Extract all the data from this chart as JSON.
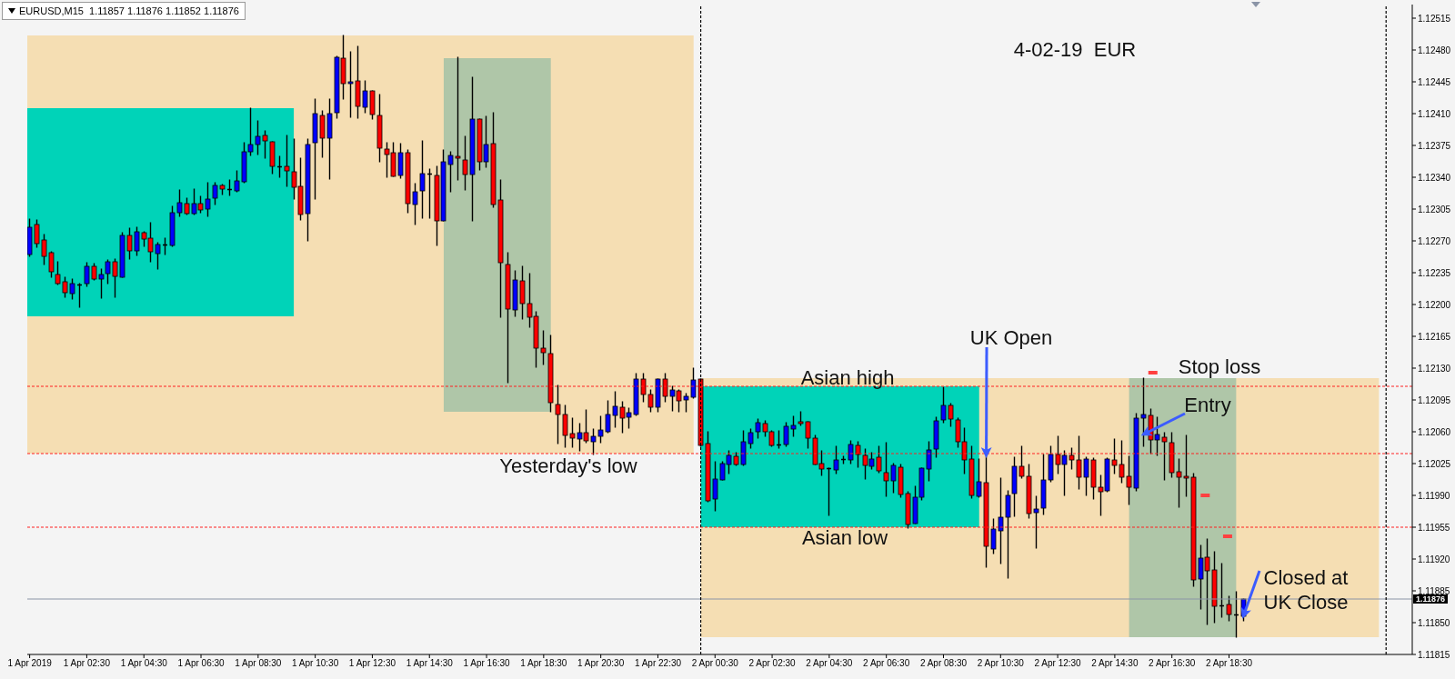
{
  "chart_data": {
    "type": "candlestick",
    "title": "EURUSD,M15  1.11857 1.11876 1.11852 1.11876",
    "subtitle": "4-02-19  EUR",
    "x": [
      "2019-04-01T00:30",
      "2019-04-01T00:45",
      "2019-04-01T01:00",
      "2019-04-01T01:15",
      "2019-04-01T01:30",
      "2019-04-01T01:45",
      "2019-04-01T02:00",
      "2019-04-01T02:15",
      "2019-04-01T02:30",
      "2019-04-01T02:45",
      "2019-04-01T03:00",
      "2019-04-01T03:15",
      "2019-04-01T03:30",
      "2019-04-01T03:45",
      "2019-04-01T04:00",
      "2019-04-01T04:15",
      "2019-04-01T04:30",
      "2019-04-01T04:45",
      "2019-04-01T05:00",
      "2019-04-01T05:15",
      "2019-04-01T05:30",
      "2019-04-01T05:45",
      "2019-04-01T06:00",
      "2019-04-01T06:15",
      "2019-04-01T06:30",
      "2019-04-01T06:45",
      "2019-04-01T07:00",
      "2019-04-01T07:15",
      "2019-04-01T07:30",
      "2019-04-01T07:45",
      "2019-04-01T08:00",
      "2019-04-01T08:15",
      "2019-04-01T08:30",
      "2019-04-01T08:45",
      "2019-04-01T09:00",
      "2019-04-01T09:15",
      "2019-04-01T09:30",
      "2019-04-01T09:45",
      "2019-04-01T10:00",
      "2019-04-01T10:15",
      "2019-04-01T10:30",
      "2019-04-01T10:45",
      "2019-04-01T11:00",
      "2019-04-01T11:15",
      "2019-04-01T11:30",
      "2019-04-01T11:45",
      "2019-04-01T12:00",
      "2019-04-01T12:15",
      "2019-04-01T12:30",
      "2019-04-01T12:45",
      "2019-04-01T13:00",
      "2019-04-01T13:15",
      "2019-04-01T13:30",
      "2019-04-01T13:45",
      "2019-04-01T14:00",
      "2019-04-01T14:15",
      "2019-04-01T14:30",
      "2019-04-01T14:45",
      "2019-04-01T15:00",
      "2019-04-01T15:15",
      "2019-04-01T15:30",
      "2019-04-01T15:45",
      "2019-04-01T16:00",
      "2019-04-01T16:15",
      "2019-04-01T16:30",
      "2019-04-01T16:45",
      "2019-04-01T17:00",
      "2019-04-01T17:15",
      "2019-04-01T17:30",
      "2019-04-01T17:45",
      "2019-04-01T18:00",
      "2019-04-01T18:15",
      "2019-04-01T18:30",
      "2019-04-01T18:45",
      "2019-04-01T19:00",
      "2019-04-01T19:15",
      "2019-04-01T19:30",
      "2019-04-01T19:45",
      "2019-04-01T20:00",
      "2019-04-01T20:15",
      "2019-04-01T20:30",
      "2019-04-01T20:45",
      "2019-04-01T21:00",
      "2019-04-01T21:15",
      "2019-04-01T21:30",
      "2019-04-01T21:45",
      "2019-04-01T22:00",
      "2019-04-01T22:15",
      "2019-04-01T22:30",
      "2019-04-01T22:45",
      "2019-04-01T23:00",
      "2019-04-01T23:15",
      "2019-04-01T23:30",
      "2019-04-01T23:45",
      "2019-04-02T00:00",
      "2019-04-02T00:15",
      "2019-04-02T00:30",
      "2019-04-02T00:45",
      "2019-04-02T01:00",
      "2019-04-02T01:15",
      "2019-04-02T01:30",
      "2019-04-02T01:45",
      "2019-04-02T02:00",
      "2019-04-02T02:15",
      "2019-04-02T02:30",
      "2019-04-02T02:45",
      "2019-04-02T03:00",
      "2019-04-02T03:15",
      "2019-04-02T03:30",
      "2019-04-02T03:45",
      "2019-04-02T04:00",
      "2019-04-02T04:15",
      "2019-04-02T04:30",
      "2019-04-02T04:45",
      "2019-04-02T05:00",
      "2019-04-02T05:15",
      "2019-04-02T05:30",
      "2019-04-02T05:45",
      "2019-04-02T06:00",
      "2019-04-02T06:15",
      "2019-04-02T06:30",
      "2019-04-02T06:45",
      "2019-04-02T07:00",
      "2019-04-02T07:15",
      "2019-04-02T07:30",
      "2019-04-02T07:45",
      "2019-04-02T08:00",
      "2019-04-02T08:15",
      "2019-04-02T08:30",
      "2019-04-02T08:45",
      "2019-04-02T09:00",
      "2019-04-02T09:15",
      "2019-04-02T09:30",
      "2019-04-02T09:45",
      "2019-04-02T10:00",
      "2019-04-02T10:15",
      "2019-04-02T10:30",
      "2019-04-02T10:45",
      "2019-04-02T11:00",
      "2019-04-02T11:15",
      "2019-04-02T11:30",
      "2019-04-02T11:45",
      "2019-04-02T12:00",
      "2019-04-02T12:15",
      "2019-04-02T12:30",
      "2019-04-02T12:45",
      "2019-04-02T13:00",
      "2019-04-02T13:15",
      "2019-04-02T13:30",
      "2019-04-02T13:45",
      "2019-04-02T14:00",
      "2019-04-02T14:15",
      "2019-04-02T14:30",
      "2019-04-02T14:45",
      "2019-04-02T15:00",
      "2019-04-02T15:15",
      "2019-04-02T15:30",
      "2019-04-02T15:45",
      "2019-04-02T16:00",
      "2019-04-02T16:15",
      "2019-04-02T16:30",
      "2019-04-02T16:45",
      "2019-04-02T17:00",
      "2019-04-02T17:15",
      "2019-04-02T17:30",
      "2019-04-02T17:45",
      "2019-04-02T18:00",
      "2019-04-02T18:15",
      "2019-04-02T18:30",
      "2019-04-02T18:45",
      "2019-04-02T19:00"
    ],
    "ohlc": [
      [
        1.12255,
        1.12294,
        1.12253,
        1.12285
      ],
      [
        1.12288,
        1.12293,
        1.12263,
        1.12267
      ],
      [
        1.12271,
        1.12277,
        1.12244,
        1.12253
      ],
      [
        1.12257,
        1.12258,
        1.1223,
        1.12236
      ],
      [
        1.12233,
        1.12247,
        1.12222,
        1.12223
      ],
      [
        1.12225,
        1.1223,
        1.12208,
        1.12213
      ],
      [
        1.12212,
        1.12228,
        1.12206,
        1.12223
      ],
      [
        1.12222,
        1.12223,
        1.12197,
        1.12221
      ],
      [
        1.12223,
        1.12246,
        1.1222,
        1.12242
      ],
      [
        1.12242,
        1.12245,
        1.12227,
        1.12228
      ],
      [
        1.12228,
        1.12239,
        1.12207,
        1.12233
      ],
      [
        1.12234,
        1.12249,
        1.12223,
        1.12247
      ],
      [
        1.12247,
        1.1225,
        1.12208,
        1.12231
      ],
      [
        1.1223,
        1.12279,
        1.1223,
        1.12276
      ],
      [
        1.12276,
        1.12284,
        1.1225,
        1.12259
      ],
      [
        1.12259,
        1.12285,
        1.12254,
        1.1228
      ],
      [
        1.12279,
        1.1228,
        1.12264,
        1.12272
      ],
      [
        1.12273,
        1.1229,
        1.12247,
        1.12258
      ],
      [
        1.12256,
        1.12268,
        1.12239,
        1.12266
      ],
      [
        1.12265,
        1.12273,
        1.12255,
        1.12266
      ],
      [
        1.12265,
        1.12308,
        1.12264,
        1.12301
      ],
      [
        1.12301,
        1.12326,
        1.12297,
        1.12312
      ],
      [
        1.12311,
        1.12317,
        1.12299,
        1.123
      ],
      [
        1.123,
        1.12327,
        1.12299,
        1.12311
      ],
      [
        1.12311,
        1.12319,
        1.12301,
        1.12304
      ],
      [
        1.12305,
        1.12334,
        1.12297,
        1.12316
      ],
      [
        1.12317,
        1.12334,
        1.1231,
        1.12331
      ],
      [
        1.12331,
        1.12332,
        1.12321,
        1.12327
      ],
      [
        1.12327,
        1.12337,
        1.1232,
        1.12326
      ],
      [
        1.12325,
        1.12347,
        1.12324,
        1.12336
      ],
      [
        1.12335,
        1.12378,
        1.12334,
        1.12368
      ],
      [
        1.12368,
        1.12416,
        1.12364,
        1.12376
      ],
      [
        1.12376,
        1.12402,
        1.12365,
        1.12385
      ],
      [
        1.12386,
        1.12391,
        1.12361,
        1.1238
      ],
      [
        1.12379,
        1.12379,
        1.12344,
        1.12352
      ],
      [
        1.12352,
        1.12363,
        1.1234,
        1.12351
      ],
      [
        1.12352,
        1.12386,
        1.1233,
        1.12347
      ],
      [
        1.12346,
        1.12382,
        1.12316,
        1.12329
      ],
      [
        1.1233,
        1.12361,
        1.12293,
        1.12299
      ],
      [
        1.123,
        1.12382,
        1.1227,
        1.12376
      ],
      [
        1.12378,
        1.12426,
        1.12316,
        1.1241
      ],
      [
        1.12408,
        1.12413,
        1.12362,
        1.12383
      ],
      [
        1.12383,
        1.12426,
        1.12338,
        1.1241
      ],
      [
        1.12411,
        1.12473,
        1.12405,
        1.12472
      ],
      [
        1.12471,
        1.12496,
        1.12426,
        1.12443
      ],
      [
        1.12443,
        1.12478,
        1.12406,
        1.12445
      ],
      [
        1.12446,
        1.12484,
        1.12405,
        1.12418
      ],
      [
        1.12417,
        1.12446,
        1.12411,
        1.12435
      ],
      [
        1.12435,
        1.12435,
        1.12404,
        1.12409
      ],
      [
        1.12408,
        1.12431,
        1.12357,
        1.12372
      ],
      [
        1.12371,
        1.12378,
        1.1234,
        1.12365
      ],
      [
        1.12367,
        1.12378,
        1.12341,
        1.12341
      ],
      [
        1.12342,
        1.12377,
        1.12339,
        1.12367
      ],
      [
        1.12367,
        1.1237,
        1.12301,
        1.12311
      ],
      [
        1.1231,
        1.12333,
        1.12288,
        1.12324
      ],
      [
        1.12325,
        1.1238,
        1.12295,
        1.12344
      ],
      [
        1.12344,
        1.12349,
        1.12295,
        1.12343
      ],
      [
        1.12342,
        1.12352,
        1.12265,
        1.12292
      ],
      [
        1.12292,
        1.1237,
        1.12292,
        1.12357
      ],
      [
        1.12354,
        1.12368,
        1.12324,
        1.12364
      ],
      [
        1.12363,
        1.12472,
        1.12337,
        1.12361
      ],
      [
        1.12359,
        1.12385,
        1.12326,
        1.12343
      ],
      [
        1.12343,
        1.1245,
        1.12292,
        1.12404
      ],
      [
        1.12404,
        1.12404,
        1.12348,
        1.12357
      ],
      [
        1.12357,
        1.12407,
        1.12351,
        1.12376
      ],
      [
        1.12377,
        1.12411,
        1.12307,
        1.1231
      ],
      [
        1.12315,
        1.12337,
        1.12186,
        1.12246
      ],
      [
        1.12244,
        1.12257,
        1.12114,
        1.12195
      ],
      [
        1.12194,
        1.12237,
        1.12187,
        1.12227
      ],
      [
        1.12226,
        1.12242,
        1.12184,
        1.12201
      ],
      [
        1.12201,
        1.12234,
        1.12175,
        1.12186
      ],
      [
        1.12187,
        1.12192,
        1.12131,
        1.12152
      ],
      [
        1.12152,
        1.12171,
        1.12134,
        1.12147
      ],
      [
        1.12146,
        1.12166,
        1.12082,
        1.12092
      ],
      [
        1.1209,
        1.12111,
        1.12047,
        1.12079
      ],
      [
        1.12079,
        1.12089,
        1.12043,
        1.12056
      ],
      [
        1.12058,
        1.12075,
        1.12043,
        1.12053
      ],
      [
        1.12052,
        1.12069,
        1.12039,
        1.12059
      ],
      [
        1.12059,
        1.12084,
        1.12048,
        1.1205
      ],
      [
        1.12049,
        1.12063,
        1.12035,
        1.12055
      ],
      [
        1.12055,
        1.12077,
        1.12048,
        1.12062
      ],
      [
        1.1206,
        1.12094,
        1.12059,
        1.12079
      ],
      [
        1.12078,
        1.12104,
        1.12065,
        1.12088
      ],
      [
        1.12087,
        1.12093,
        1.12059,
        1.12075
      ],
      [
        1.12076,
        1.12086,
        1.12064,
        1.12081
      ],
      [
        1.12079,
        1.12124,
        1.12078,
        1.12118
      ],
      [
        1.12118,
        1.12124,
        1.12093,
        1.12101
      ],
      [
        1.12101,
        1.12106,
        1.12082,
        1.12087
      ],
      [
        1.12087,
        1.12118,
        1.12082,
        1.12118
      ],
      [
        1.12118,
        1.12124,
        1.12093,
        1.12099
      ],
      [
        1.12099,
        1.1211,
        1.12083,
        1.12106
      ],
      [
        1.12105,
        1.12106,
        1.12082,
        1.12094
      ],
      [
        1.12095,
        1.12102,
        1.12082,
        1.12099
      ],
      [
        1.12098,
        1.1213,
        1.12097,
        1.12117
      ],
      [
        1.12118,
        1.12118,
        1.12044,
        1.12045
      ],
      [
        1.12047,
        1.1206,
        1.11983,
        1.11984
      ],
      [
        1.11986,
        1.12027,
        1.11973,
        1.12008
      ],
      [
        1.12007,
        1.12027,
        1.12007,
        1.12025
      ],
      [
        1.12024,
        1.12039,
        1.12014,
        1.12034
      ],
      [
        1.12033,
        1.12037,
        1.12023,
        1.12024
      ],
      [
        1.12024,
        1.12061,
        1.12023,
        1.12049
      ],
      [
        1.12047,
        1.12063,
        1.12042,
        1.12059
      ],
      [
        1.1206,
        1.12074,
        1.12053,
        1.1207
      ],
      [
        1.12069,
        1.12072,
        1.12055,
        1.1206
      ],
      [
        1.1206,
        1.12061,
        1.12044,
        1.12045
      ],
      [
        1.12046,
        1.12061,
        1.12042,
        1.12045
      ],
      [
        1.12046,
        1.1207,
        1.12044,
        1.12066
      ],
      [
        1.12063,
        1.12077,
        1.12055,
        1.12067
      ],
      [
        1.12071,
        1.12082,
        1.12067,
        1.12069
      ],
      [
        1.12071,
        1.12071,
        1.12042,
        1.12053
      ],
      [
        1.12053,
        1.12056,
        1.12024,
        1.12024
      ],
      [
        1.12025,
        1.12039,
        1.12012,
        1.12019
      ],
      [
        1.1202,
        1.1202,
        1.11968,
        1.12019
      ],
      [
        1.12018,
        1.12044,
        1.12014,
        1.12029
      ],
      [
        1.12029,
        1.12033,
        1.12025,
        1.1203
      ],
      [
        1.12029,
        1.1205,
        1.12025,
        1.12046
      ],
      [
        1.12045,
        1.12049,
        1.12021,
        1.12035
      ],
      [
        1.12034,
        1.12041,
        1.12008,
        1.12023
      ],
      [
        1.12022,
        1.12037,
        1.12019,
        1.1203
      ],
      [
        1.12032,
        1.12044,
        1.12015,
        1.12017
      ],
      [
        1.12015,
        1.12048,
        1.11989,
        1.12006
      ],
      [
        1.12006,
        1.12025,
        1.11993,
        1.12023
      ],
      [
        1.12021,
        1.12024,
        1.11988,
        1.11991
      ],
      [
        1.11992,
        1.11994,
        1.11954,
        1.11958
      ],
      [
        1.11959,
        1.12,
        1.11959,
        1.11988
      ],
      [
        1.11988,
        1.1202,
        1.11985,
        1.1202
      ],
      [
        1.12019,
        1.12049,
        1.12006,
        1.1204
      ],
      [
        1.12041,
        1.12076,
        1.12032,
        1.12072
      ],
      [
        1.12073,
        1.12109,
        1.1207,
        1.12089
      ],
      [
        1.12089,
        1.12091,
        1.12066,
        1.12074
      ],
      [
        1.12073,
        1.12075,
        1.12043,
        1.12049
      ],
      [
        1.12049,
        1.12064,
        1.12014,
        1.12029
      ],
      [
        1.1203,
        1.12044,
        1.11987,
        1.1199
      ],
      [
        1.11989,
        1.1203,
        1.11988,
        1.12005
      ],
      [
        1.12004,
        1.12034,
        1.11911,
        1.11934
      ],
      [
        1.11931,
        1.11964,
        1.11926,
        1.11953
      ],
      [
        1.11951,
        1.12009,
        1.11915,
        1.11966
      ],
      [
        1.11966,
        1.11995,
        1.11899,
        1.1199
      ],
      [
        1.11992,
        1.12032,
        1.11967,
        1.12022
      ],
      [
        1.12022,
        1.12044,
        1.12009,
        1.12011
      ],
      [
        1.12011,
        1.12024,
        1.11965,
        1.1197
      ],
      [
        1.11971,
        1.11989,
        1.11932,
        1.11975
      ],
      [
        1.11976,
        1.12035,
        1.11969,
        1.12007
      ],
      [
        1.12007,
        1.12044,
        1.12005,
        1.12035
      ],
      [
        1.12035,
        1.12055,
        1.12014,
        1.12024
      ],
      [
        1.12024,
        1.12039,
        1.1199,
        1.12034
      ],
      [
        1.12034,
        1.12042,
        1.12019,
        1.12029
      ],
      [
        1.12029,
        1.12055,
        1.11997,
        1.1201
      ],
      [
        1.1201,
        1.12032,
        1.1199,
        1.1203
      ],
      [
        1.12029,
        1.12031,
        1.11986,
        1.11999
      ],
      [
        1.11999,
        1.12012,
        1.11968,
        1.11994
      ],
      [
        1.11995,
        1.12031,
        1.11994,
        1.1203
      ],
      [
        1.12029,
        1.12052,
        1.12014,
        1.12023
      ],
      [
        1.12024,
        1.1205,
        1.12004,
        1.1201
      ],
      [
        1.12011,
        1.12033,
        1.1198,
        1.11999
      ],
      [
        1.11998,
        1.1208,
        1.11995,
        1.12075
      ],
      [
        1.12075,
        1.12119,
        1.12044,
        1.12079
      ],
      [
        1.12078,
        1.12085,
        1.12036,
        1.12051
      ],
      [
        1.12051,
        1.12076,
        1.12034,
        1.12057
      ],
      [
        1.12054,
        1.12059,
        1.12007,
        1.12049
      ],
      [
        1.12048,
        1.12059,
        1.1201,
        1.12015
      ],
      [
        1.12016,
        1.1203,
        1.11977,
        1.1201
      ],
      [
        1.12011,
        1.12056,
        1.11989,
        1.12009
      ],
      [
        1.1201,
        1.12014,
        1.1189,
        1.11897
      ],
      [
        1.11898,
        1.11935,
        1.11865,
        1.11921
      ],
      [
        1.11922,
        1.11942,
        1.11848,
        1.11907
      ],
      [
        1.11908,
        1.11928,
        1.1185,
        1.11868
      ],
      [
        1.11869,
        1.11915,
        1.11856,
        1.11868
      ],
      [
        1.1187,
        1.11879,
        1.11852,
        1.11859
      ],
      [
        1.11859,
        1.11884,
        1.11834,
        1.11858
      ],
      [
        1.11857,
        1.11876,
        1.11852,
        1.11876
      ]
    ],
    "series": [
      {
        "type": "scatter",
        "color": "#ff4040",
        "x": [
          "2019-04-02T15:50",
          "2019-04-02T17:40",
          "2019-04-02T18:27"
        ],
        "values": [
          1.12125,
          1.1199,
          1.11945
        ]
      }
    ],
    "xlim": [
      "2019-04-01T00:25",
      "2019-04-03T00:55"
    ],
    "xticks": [
      {
        "value": "2019-04-01T00:30",
        "label": "1 Apr 2019"
      },
      {
        "value": "2019-04-01T02:30",
        "label": "1 Apr 02:30"
      },
      {
        "value": "2019-04-01T04:30",
        "label": "1 Apr 04:30"
      },
      {
        "value": "2019-04-01T06:30",
        "label": "1 Apr 06:30"
      },
      {
        "value": "2019-04-01T08:30",
        "label": "1 Apr 08:30"
      },
      {
        "value": "2019-04-01T10:30",
        "label": "1 Apr 10:30"
      },
      {
        "value": "2019-04-01T12:30",
        "label": "1 Apr 12:30"
      },
      {
        "value": "2019-04-01T14:30",
        "label": "1 Apr 14:30"
      },
      {
        "value": "2019-04-01T16:30",
        "label": "1 Apr 16:30"
      },
      {
        "value": "2019-04-01T18:30",
        "label": "1 Apr 18:30"
      },
      {
        "value": "2019-04-01T20:30",
        "label": "1 Apr 20:30"
      },
      {
        "value": "2019-04-01T22:30",
        "label": "1 Apr 22:30"
      },
      {
        "value": "2019-04-02T00:30",
        "label": "2 Apr 00:30"
      },
      {
        "value": "2019-04-02T02:30",
        "label": "2 Apr 02:30"
      },
      {
        "value": "2019-04-02T04:30",
        "label": "2 Apr 04:30"
      },
      {
        "value": "2019-04-02T06:30",
        "label": "2 Apr 06:30"
      },
      {
        "value": "2019-04-02T08:30",
        "label": "2 Apr 08:30"
      },
      {
        "value": "2019-04-02T10:30",
        "label": "2 Apr 10:30"
      },
      {
        "value": "2019-04-02T12:30",
        "label": "2 Apr 12:30"
      },
      {
        "value": "2019-04-02T14:30",
        "label": "2 Apr 14:30"
      },
      {
        "value": "2019-04-02T16:30",
        "label": "2 Apr 16:30"
      },
      {
        "value": "2019-04-02T18:30",
        "label": "2 Apr 18:30"
      }
    ],
    "ylim": [
      1.11815,
      1.1253
    ],
    "yticks": [
      1.11815,
      {
        "value": 1.1185,
        "label": "1.11850"
      },
      1.11885,
      {
        "value": 1.1192,
        "label": "1.11920"
      },
      1.11955,
      {
        "value": 1.1199,
        "label": "1.11990"
      },
      1.12025,
      {
        "value": 1.1206,
        "label": "1.12060"
      },
      1.12095,
      {
        "value": 1.1213,
        "label": "1.12130"
      },
      1.12165,
      {
        "value": 1.122,
        "label": "1.12200"
      },
      1.12235,
      {
        "value": 1.1227,
        "label": "1.12270"
      },
      1.12305,
      {
        "value": 1.1234,
        "label": "1.12340"
      },
      1.12375,
      {
        "value": 1.1241,
        "label": "1.12410"
      },
      1.12445,
      {
        "value": 1.1248,
        "label": "1.12480"
      },
      1.12515
    ],
    "bands": [
      {
        "axis": "x",
        "from": "2019-04-01T00:25",
        "to": "2019-04-01T23:45",
        "color": "#f5deb3"
      },
      {
        "axis": "x",
        "from": "2019-04-01T00:25",
        "to": "2019-04-01T09:45",
        "color": "#00d3b8"
      },
      {
        "axis": "x",
        "from": "2019-04-01T15:00",
        "to": "2019-04-01T18:45",
        "color": "#afc6a8"
      },
      {
        "axis": "x",
        "from": "2019-04-02T00:00",
        "to": "2019-04-02T23:45",
        "color": "#f5deb3"
      },
      {
        "axis": "x",
        "from": "2019-04-02T00:00",
        "to": "2019-04-02T09:45",
        "color": "#00d3b8"
      },
      {
        "axis": "x",
        "from": "2019-04-02T15:00",
        "to": "2019-04-02T18:45",
        "color": "#afc6a8"
      }
    ],
    "ref_lines": [
      {
        "axis": "y",
        "value": 1.1211,
        "label": "Asian high",
        "color": "#ff2020",
        "line_style": "dotted"
      },
      {
        "axis": "y",
        "value": 1.12036,
        "label": "Yesterday's low",
        "color": "#ff2020",
        "line_style": "dotted"
      },
      {
        "axis": "y",
        "value": 1.11955,
        "label": "Asian low",
        "color": "#ff2020",
        "line_style": "dotted"
      },
      {
        "axis": "y",
        "value": 1.11876,
        "label": "1.11876",
        "color": "#8a94a6",
        "line_style": "solid"
      },
      {
        "axis": "x",
        "value": "2019-04-02T00:00",
        "color": "#000000",
        "line_style": "dotted"
      },
      {
        "axis": "x",
        "value": "2019-04-03T00:00",
        "color": "#000000",
        "line_style": "dotted"
      }
    ],
    "annotations": [
      {
        "text": "UK Open",
        "x": "2019-04-02T10:00",
        "y": 1.12034
      },
      "Stop loss",
      {
        "text": "Entry",
        "x": "2019-04-02T15:30",
        "y": 1.12057
      },
      {
        "text": "Closed at UK Close",
        "x": "2019-04-02T19:00",
        "y": 1.11857
      }
    ]
  }
}
